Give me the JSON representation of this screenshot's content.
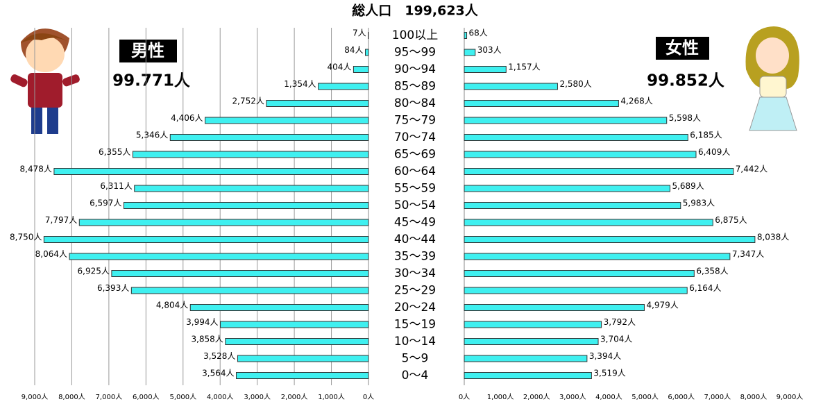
{
  "chart_data": {
    "type": "pyramid",
    "title": "総人口　199,623人",
    "categories": [
      "100以上",
      "95～99",
      "90～94",
      "85～89",
      "80～84",
      "75～79",
      "70～74",
      "65～69",
      "60～64",
      "55～59",
      "50～54",
      "45～49",
      "40～44",
      "35～39",
      "30～34",
      "25～29",
      "20～24",
      "15～19",
      "10～14",
      "5～9",
      "0～4"
    ],
    "series": [
      {
        "name": "男性",
        "total": "99.771人",
        "color": "#3ff0f0",
        "grid": true,
        "values": [
          7,
          84,
          404,
          1354,
          2752,
          4406,
          5346,
          6355,
          8478,
          6311,
          6597,
          7797,
          8750,
          8064,
          6925,
          6393,
          4804,
          3994,
          3858,
          3528,
          3564
        ],
        "value_labels": [
          "7人",
          "84人",
          "404人",
          "1,354人",
          "2,752人",
          "4,406人",
          "5,346人",
          "6,355人",
          "8,478人",
          "6,311人",
          "6,597人",
          "7,797人",
          "8,750人",
          "8,064人",
          "6,925人",
          "6,393人",
          "4,804人",
          "3,994人",
          "3,858人",
          "3,528人",
          "3,564人"
        ],
        "xlim": [
          9000,
          0
        ],
        "xticks": [
          {
            "value": 9000,
            "label": "9,000人"
          },
          {
            "value": 8000,
            "label": "8,000人"
          },
          {
            "value": 7000,
            "label": "7,000人"
          },
          {
            "value": 6000,
            "label": "6,000人"
          },
          {
            "value": 5000,
            "label": "5,000人"
          },
          {
            "value": 4000,
            "label": "4,000人"
          },
          {
            "value": 3000,
            "label": "3,000人"
          },
          {
            "value": 2000,
            "label": "2,000人"
          },
          {
            "value": 1000,
            "label": "1,000人"
          },
          {
            "value": 0,
            "label": "0人"
          }
        ]
      },
      {
        "name": "女性",
        "total": "99.852人",
        "color": "#3ff0f0",
        "grid": false,
        "values": [
          68,
          303,
          1157,
          2580,
          4268,
          5598,
          6185,
          6409,
          7442,
          5689,
          5983,
          6875,
          8038,
          7347,
          6358,
          6164,
          4979,
          3792,
          3704,
          3394,
          3519
        ],
        "value_labels": [
          "68人",
          "303人",
          "1,157人",
          "2,580人",
          "4,268人",
          "5,598人",
          "6,185人",
          "6,409人",
          "7,442人",
          "5,689人",
          "5,983人",
          "6,875人",
          "8,038人",
          "7,347人",
          "6,358人",
          "6,164人",
          "4,979人",
          "3,792人",
          "3,704人",
          "3,394人",
          "3,519人"
        ],
        "xlim": [
          0,
          9000
        ],
        "xticks": [
          {
            "value": 0,
            "label": "0人"
          },
          {
            "value": 1000,
            "label": "1,000人"
          },
          {
            "value": 2000,
            "label": "2,000人"
          },
          {
            "value": 3000,
            "label": "3,000人"
          },
          {
            "value": 4000,
            "label": "4,000人"
          },
          {
            "value": 5000,
            "label": "5,000人"
          },
          {
            "value": 6000,
            "label": "6,000人"
          },
          {
            "value": 7000,
            "label": "7,000人"
          },
          {
            "value": 8000,
            "label": "8,000人"
          },
          {
            "value": 9000,
            "label": "9,000人"
          }
        ]
      }
    ]
  }
}
